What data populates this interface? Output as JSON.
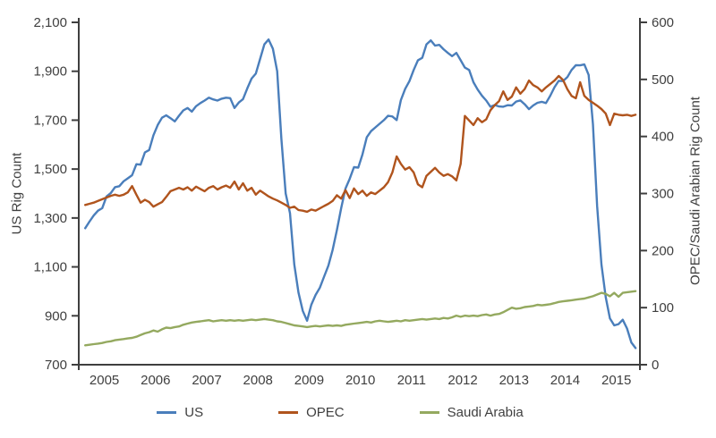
{
  "chart_data": {
    "type": "line",
    "title": "",
    "x_axis": {
      "tick_years": [
        "2005",
        "2006",
        "2007",
        "2008",
        "2009",
        "2010",
        "2011",
        "2012",
        "2013",
        "2014",
        "2015"
      ],
      "min": 2005.0,
      "max": 2015.96,
      "tick_position_offset": 0.5
    },
    "y_axis_left": {
      "label": "US Rig Count",
      "min": 700,
      "max": 2100,
      "ticks": [
        700,
        900,
        1100,
        1300,
        1500,
        1700,
        1900,
        2100
      ]
    },
    "y_axis_right": {
      "label": "OPEC/Saudi Arabian Rig Count",
      "min": 0,
      "max": 600,
      "ticks": [
        0,
        100,
        200,
        300,
        400,
        500,
        600
      ]
    },
    "sampling": {
      "start_year_fraction": 2005.125,
      "step_years": 0.08333333
    },
    "legend_position": "bottom",
    "series": [
      {
        "name": "US",
        "axis": "left",
        "color": "#4a7ebb",
        "values": [
          1258,
          1285,
          1310,
          1330,
          1340,
          1388,
          1402,
          1426,
          1430,
          1450,
          1462,
          1475,
          1520,
          1518,
          1568,
          1578,
          1638,
          1680,
          1710,
          1720,
          1708,
          1695,
          1718,
          1740,
          1750,
          1735,
          1757,
          1770,
          1780,
          1792,
          1785,
          1780,
          1788,
          1792,
          1790,
          1750,
          1772,
          1786,
          1830,
          1870,
          1890,
          1950,
          2010,
          2030,
          1992,
          1900,
          1623,
          1400,
          1320,
          1110,
          995,
          920,
          880,
          945,
          985,
          1015,
          1060,
          1105,
          1170,
          1250,
          1340,
          1420,
          1460,
          1508,
          1506,
          1560,
          1630,
          1655,
          1670,
          1685,
          1700,
          1718,
          1715,
          1700,
          1782,
          1828,
          1860,
          1905,
          1945,
          1955,
          2010,
          2026,
          2005,
          2008,
          1990,
          1975,
          1962,
          1975,
          1945,
          1915,
          1905,
          1855,
          1825,
          1800,
          1780,
          1755,
          1762,
          1756,
          1755,
          1761,
          1760,
          1776,
          1781,
          1765,
          1745,
          1760,
          1771,
          1775,
          1770,
          1800,
          1835,
          1861,
          1860,
          1876,
          1905,
          1925,
          1924,
          1928,
          1885,
          1684,
          1348,
          1110,
          976,
          889,
          861,
          866,
          884,
          848,
          791,
          768
        ]
      },
      {
        "name": "OPEC",
        "axis": "right",
        "color": "#b0541d",
        "values": [
          280,
          282,
          284,
          287,
          290,
          293,
          296,
          298,
          296,
          298,
          302,
          313,
          298,
          284,
          289,
          285,
          277,
          281,
          285,
          294,
          304,
          307,
          310,
          307,
          311,
          305,
          312,
          308,
          304,
          310,
          313,
          307,
          311,
          314,
          310,
          321,
          307,
          318,
          305,
          310,
          298,
          305,
          300,
          295,
          291,
          288,
          284,
          280,
          275,
          277,
          271,
          270,
          268,
          272,
          270,
          274,
          278,
          282,
          287,
          297,
          291,
          306,
          292,
          309,
          299,
          305,
          296,
          302,
          299,
          305,
          311,
          320,
          337,
          365,
          352,
          342,
          346,
          337,
          316,
          311,
          331,
          338,
          345,
          337,
          331,
          334,
          330,
          323,
          352,
          436,
          428,
          420,
          432,
          425,
          430,
          446,
          455,
          462,
          479,
          464,
          470,
          486,
          475,
          483,
          498,
          490,
          486,
          479,
          486,
          492,
          498,
          506,
          499,
          483,
          471,
          467,
          495,
          471,
          464,
          459,
          454,
          448,
          440,
          420,
          440,
          438,
          437,
          438,
          436,
          438
        ]
      },
      {
        "name": "Saudi Arabia",
        "axis": "right",
        "color": "#94a95f",
        "values": [
          34,
          35,
          36,
          37,
          38,
          40,
          41,
          43,
          44,
          45,
          46,
          47,
          49,
          52,
          55,
          57,
          60,
          58,
          62,
          65,
          64,
          66,
          67,
          70,
          72,
          74,
          75,
          76,
          77,
          78,
          76,
          77,
          78,
          77,
          78,
          77,
          78,
          77,
          78,
          79,
          78,
          79,
          80,
          79,
          78,
          76,
          75,
          73,
          71,
          69,
          68,
          67,
          66,
          67,
          68,
          67,
          68,
          69,
          68,
          69,
          68,
          70,
          71,
          72,
          73,
          74,
          75,
          74,
          76,
          77,
          76,
          75,
          76,
          77,
          76,
          78,
          77,
          78,
          79,
          80,
          79,
          80,
          81,
          80,
          82,
          81,
          83,
          86,
          84,
          86,
          85,
          86,
          85,
          87,
          88,
          86,
          88,
          89,
          92,
          96,
          100,
          98,
          99,
          101,
          102,
          103,
          105,
          104,
          105,
          106,
          108,
          110,
          111,
          112,
          113,
          114,
          115,
          116,
          118,
          120,
          123,
          126,
          124,
          120,
          126,
          119,
          126,
          127,
          128,
          129
        ]
      }
    ]
  },
  "colors": {
    "axis": "#3f3f3f",
    "text": "#3f3f3f",
    "background": "#ffffff"
  }
}
